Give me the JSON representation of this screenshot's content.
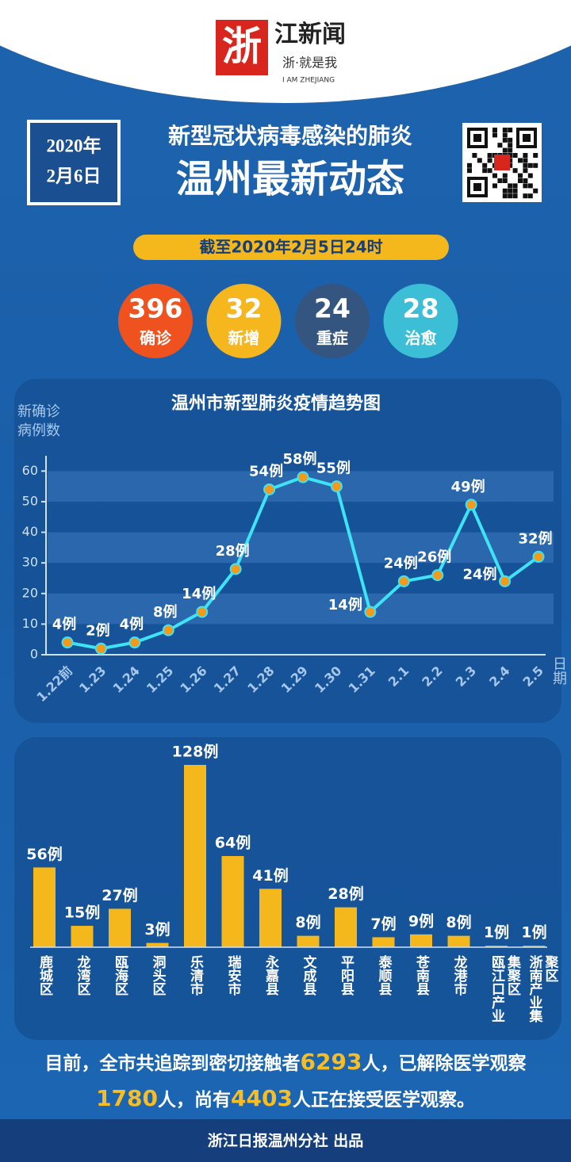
{
  "header": {
    "logo_mark": "浙",
    "logo_name": "江新闻",
    "logo_slogan": "浙·就是我",
    "logo_en": "I AM ZHEJIANG",
    "date_year": "2020年",
    "date_day": "2月6日",
    "title_top": "新型冠状病毒感染的肺炎",
    "title_main": "温州最新动态",
    "as_of": "截至2020年2月5日24时"
  },
  "stats": [
    {
      "value": 396,
      "label": "确诊",
      "color": "#f0521f"
    },
    {
      "value": 32,
      "label": "新增",
      "color": "#f5b61e"
    },
    {
      "value": 24,
      "label": "重症",
      "color": "#34557f"
    },
    {
      "value": 28,
      "label": "治愈",
      "color": "#3cbfd6"
    }
  ],
  "chart_data": [
    {
      "type": "line",
      "title": "温州市新型肺炎疫情趋势图",
      "ylabel": "新确诊病例数",
      "xlabel": "日期",
      "categories": [
        "1.22前",
        "1.23",
        "1.24",
        "1.25",
        "1.26",
        "1.27",
        "1.28",
        "1.29",
        "1.30",
        "1.31",
        "2.1",
        "2.2",
        "2.3",
        "2.4",
        "2.5"
      ],
      "values": [
        4,
        2,
        4,
        8,
        14,
        28,
        54,
        58,
        55,
        14,
        24,
        26,
        49,
        24,
        32
      ],
      "value_labels": [
        "4例",
        "2例",
        "4例",
        "8例",
        "14例",
        "28例",
        "54例",
        "58例",
        "55例",
        "14例",
        "24例",
        "26例",
        "49例",
        "24例",
        "32例"
      ],
      "color": "#3ee3f5",
      "marker_color": "#f39a1a",
      "ylim": [
        0,
        65
      ],
      "yticks": [
        0,
        10,
        20,
        30,
        40,
        50,
        60
      ],
      "grid": "bands"
    },
    {
      "type": "bar",
      "categories": [
        "鹿城区",
        "龙湾区",
        "瓯海区",
        "洞头区",
        "乐清市",
        "瑞安市",
        "永嘉县",
        "文成县",
        "平阳县",
        "泰顺县",
        "苍南县",
        "龙港市",
        "瓯江口产业集聚区",
        "浙南产业集聚区"
      ],
      "values": [
        56,
        15,
        27,
        3,
        128,
        64,
        41,
        8,
        28,
        7,
        9,
        8,
        1,
        1
      ],
      "value_labels": [
        "56例",
        "15例",
        "27例",
        "3例",
        "128例",
        "64例",
        "41例",
        "8例",
        "28例",
        "7例",
        "9例",
        "8例",
        "1例",
        "1例"
      ],
      "color": "#f5b81c"
    }
  ],
  "summary": {
    "parts": [
      "目前，全市共追踪到密切接触者",
      "6293",
      "人，已解除医学观察",
      "1780",
      "人，尚有",
      "4403",
      "人正在接受医学观察。"
    ]
  },
  "footer": "浙江日报温州分社 出品"
}
